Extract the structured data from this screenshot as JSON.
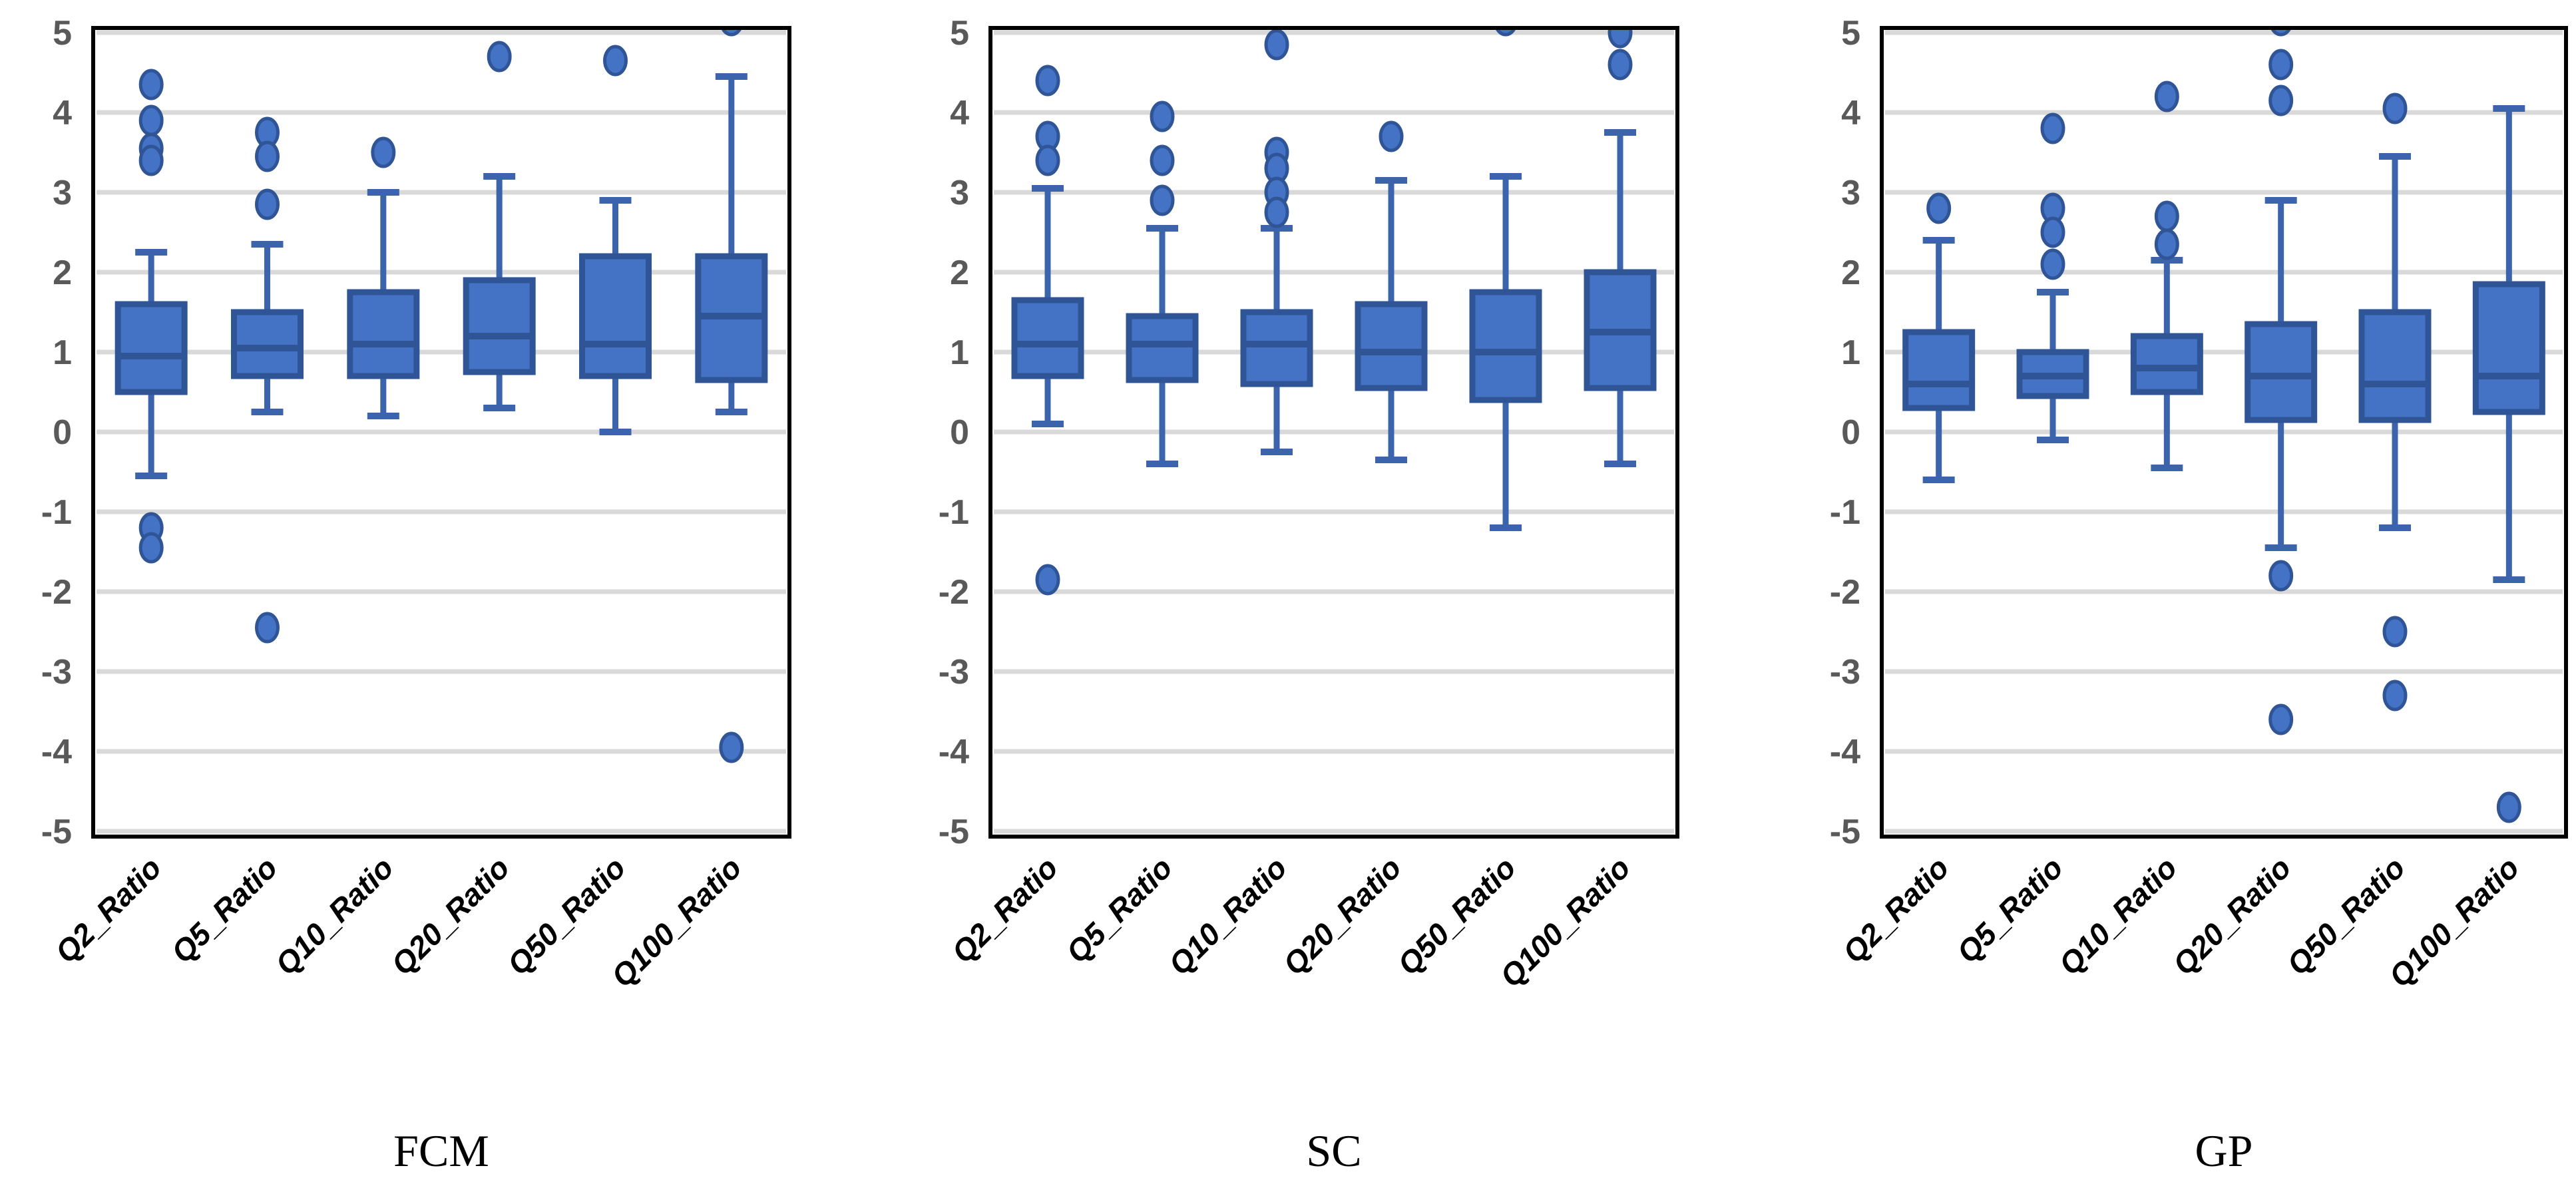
{
  "figure": {
    "background": "#FFFFFF",
    "panel_titles": [
      "FCM",
      "SC",
      "GP"
    ]
  },
  "style": {
    "box_fill": "#4472C4",
    "box_edge": "#2F5597",
    "median_color": "#2F5597",
    "whisker_color": "#3C64AC",
    "outlier_fill": "#4472C4",
    "outlier_edge": "#2F5597",
    "grid_color": "#D9D9D9",
    "plot_border_color": "#000000",
    "ytick_color": "#595959",
    "xlabel_color": "#000000",
    "title_color": "#000000"
  },
  "chart_data": [
    {
      "type": "box",
      "title": "FCM",
      "ylim": [
        -5,
        5
      ],
      "yticks": [
        5,
        4,
        3,
        2,
        1,
        0,
        -1,
        -2,
        -3,
        -4,
        -5
      ],
      "grid": true,
      "categories": [
        "Q2_Ratio",
        "Q5_Ratio",
        "Q10_Ratio",
        "Q20_Ratio",
        "Q50_Ratio",
        "Q100_Ratio"
      ],
      "boxes": [
        {
          "label": "Q2_Ratio",
          "whislo": -0.55,
          "q1": 0.5,
          "med": 0.95,
          "q3": 1.6,
          "whishi": 2.25,
          "outliers": [
            4.35,
            3.9,
            3.55,
            3.4,
            -1.2,
            -1.45
          ]
        },
        {
          "label": "Q5_Ratio",
          "whislo": 0.25,
          "q1": 0.7,
          "med": 1.05,
          "q3": 1.5,
          "whishi": 2.35,
          "outliers": [
            3.75,
            3.45,
            2.85,
            -2.45
          ]
        },
        {
          "label": "Q10_Ratio",
          "whislo": 0.2,
          "q1": 0.7,
          "med": 1.1,
          "q3": 1.75,
          "whishi": 3.0,
          "outliers": [
            3.5
          ]
        },
        {
          "label": "Q20_Ratio",
          "whislo": 0.3,
          "q1": 0.75,
          "med": 1.2,
          "q3": 1.9,
          "whishi": 3.2,
          "outliers": [
            4.7
          ]
        },
        {
          "label": "Q50_Ratio",
          "whislo": 0.0,
          "q1": 0.7,
          "med": 1.1,
          "q3": 2.2,
          "whishi": 2.9,
          "outliers": [
            4.65
          ]
        },
        {
          "label": "Q100_Ratio",
          "whislo": 0.25,
          "q1": 0.65,
          "med": 1.45,
          "q3": 2.2,
          "whishi": 4.45,
          "outliers": [
            5.15,
            -3.95
          ]
        }
      ]
    },
    {
      "type": "box",
      "title": "SC",
      "ylim": [
        -5,
        5
      ],
      "yticks": [
        5,
        4,
        3,
        2,
        1,
        0,
        -1,
        -2,
        -3,
        -4,
        -5
      ],
      "grid": true,
      "categories": [
        "Q2_Ratio",
        "Q5_Ratio",
        "Q10_Ratio",
        "Q20_Ratio",
        "Q50_Ratio",
        "Q100_Ratio"
      ],
      "boxes": [
        {
          "label": "Q2_Ratio",
          "whislo": 0.1,
          "q1": 0.7,
          "med": 1.1,
          "q3": 1.65,
          "whishi": 3.05,
          "outliers": [
            4.4,
            3.7,
            3.4,
            -1.85
          ]
        },
        {
          "label": "Q5_Ratio",
          "whislo": -0.4,
          "q1": 0.65,
          "med": 1.1,
          "q3": 1.45,
          "whishi": 2.55,
          "outliers": [
            3.95,
            3.4,
            2.9
          ]
        },
        {
          "label": "Q10_Ratio",
          "whislo": -0.25,
          "q1": 0.6,
          "med": 1.1,
          "q3": 1.5,
          "whishi": 2.55,
          "outliers": [
            4.85,
            3.5,
            3.3,
            3.0,
            2.75
          ]
        },
        {
          "label": "Q20_Ratio",
          "whislo": -0.35,
          "q1": 0.55,
          "med": 1.0,
          "q3": 1.6,
          "whishi": 3.15,
          "outliers": [
            3.7
          ]
        },
        {
          "label": "Q50_Ratio",
          "whislo": -1.2,
          "q1": 0.4,
          "med": 1.0,
          "q3": 1.75,
          "whishi": 3.2,
          "outliers": [
            5.15
          ]
        },
        {
          "label": "Q100_Ratio",
          "whislo": -0.4,
          "q1": 0.55,
          "med": 1.25,
          "q3": 2.0,
          "whishi": 3.75,
          "outliers": [
            5.0,
            4.6
          ]
        }
      ]
    },
    {
      "type": "box",
      "title": "GP",
      "ylim": [
        -5,
        5
      ],
      "yticks": [
        5,
        4,
        3,
        2,
        1,
        0,
        -1,
        -2,
        -3,
        -4,
        -5
      ],
      "grid": true,
      "categories": [
        "Q2_Ratio",
        "Q5_Ratio",
        "Q10_Ratio",
        "Q20_Ratio",
        "Q50_Ratio",
        "Q100_Ratio"
      ],
      "boxes": [
        {
          "label": "Q2_Ratio",
          "whislo": -0.6,
          "q1": 0.3,
          "med": 0.6,
          "q3": 1.25,
          "whishi": 2.4,
          "outliers": [
            2.8
          ]
        },
        {
          "label": "Q5_Ratio",
          "whislo": -0.1,
          "q1": 0.45,
          "med": 0.7,
          "q3": 1.0,
          "whishi": 1.75,
          "outliers": [
            3.8,
            2.8,
            2.5,
            2.1
          ]
        },
        {
          "label": "Q10_Ratio",
          "whislo": -0.45,
          "q1": 0.5,
          "med": 0.8,
          "q3": 1.2,
          "whishi": 2.15,
          "outliers": [
            4.2,
            2.7,
            2.35
          ]
        },
        {
          "label": "Q20_Ratio",
          "whislo": -1.45,
          "q1": 0.15,
          "med": 0.7,
          "q3": 1.35,
          "whishi": 2.9,
          "outliers": [
            5.15,
            4.6,
            4.15,
            -1.8,
            -3.6
          ]
        },
        {
          "label": "Q50_Ratio",
          "whislo": -1.2,
          "q1": 0.15,
          "med": 0.6,
          "q3": 1.5,
          "whishi": 3.45,
          "outliers": [
            4.05,
            -2.5,
            -3.3
          ]
        },
        {
          "label": "Q100_Ratio",
          "whislo": -1.85,
          "q1": 0.25,
          "med": 0.7,
          "q3": 1.85,
          "whishi": 4.05,
          "outliers": [
            -4.7
          ]
        }
      ]
    }
  ]
}
